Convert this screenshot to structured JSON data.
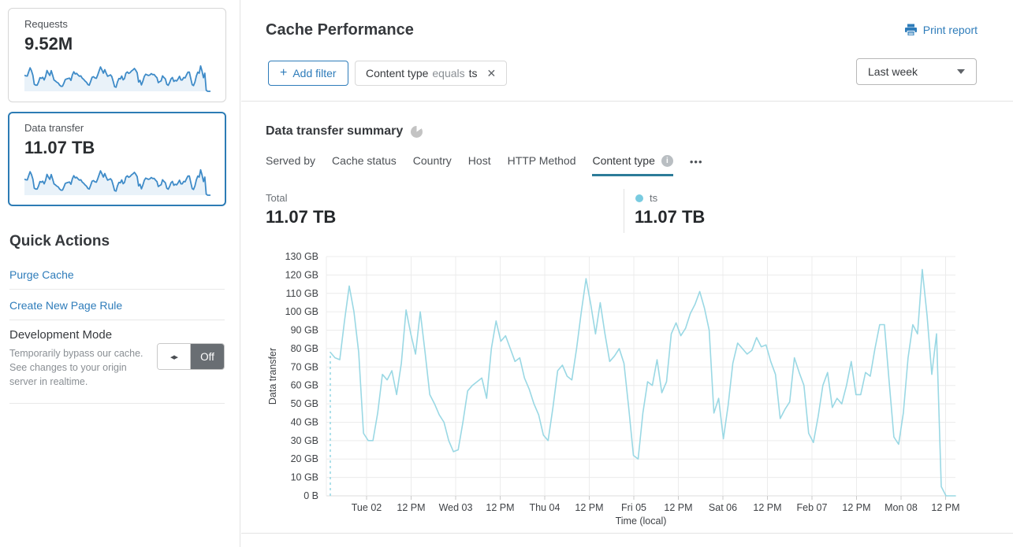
{
  "sidebar": {
    "cards": [
      {
        "label": "Requests",
        "value": "9.52M",
        "selected": false
      },
      {
        "label": "Data transfer",
        "value": "11.07 TB",
        "selected": true
      }
    ],
    "quick_actions": {
      "title": "Quick Actions",
      "links": [
        {
          "label": "Purge Cache"
        },
        {
          "label": "Create New Page Rule"
        }
      ],
      "dev_mode": {
        "label": "Development Mode",
        "description": "Temporarily bypass our cache. See changes to your origin server in realtime.",
        "toggle_state": "Off"
      }
    }
  },
  "header": {
    "title": "Cache Performance",
    "print_report_label": "Print report",
    "add_filter": {
      "plus": "+",
      "label": "Add filter"
    },
    "filter_chip": {
      "field": "Content type",
      "operator": "equals",
      "value": "ts",
      "close": "✕"
    },
    "time_range": "Last week"
  },
  "summary": {
    "title": "Data transfer summary",
    "tabs": [
      {
        "label": "Served by",
        "active": false
      },
      {
        "label": "Cache status",
        "active": false
      },
      {
        "label": "Country",
        "active": false
      },
      {
        "label": "Host",
        "active": false
      },
      {
        "label": "HTTP Method",
        "active": false
      },
      {
        "label": "Content type",
        "active": true
      }
    ],
    "more_label": "•••",
    "total_label": "Total",
    "total_value": "11.07 TB",
    "legend": {
      "name": "ts",
      "value": "11.07 TB",
      "color": "#79cbe0"
    }
  },
  "chart_data": {
    "type": "line",
    "title": "Data transfer summary",
    "xlabel": "Time (local)",
    "ylabel": "Data transfer",
    "unit": "GB",
    "ylim": [
      0,
      130
    ],
    "grid": true,
    "y_tick_labels": [
      "0 B",
      "10 GB",
      "20 GB",
      "30 GB",
      "40 GB",
      "50 GB",
      "60 GB",
      "70 GB",
      "80 GB",
      "90 GB",
      "100 GB",
      "110 GB",
      "120 GB",
      "130 GB"
    ],
    "x_tick_labels": [
      "Tue 02",
      "12 PM",
      "Wed 03",
      "12 PM",
      "Thu 04",
      "12 PM",
      "Fri 05",
      "12 PM",
      "Sat 06",
      "12 PM",
      "Feb 07",
      "12 PM",
      "Mon 08",
      "12 PM"
    ],
    "series": [
      {
        "name": "ts",
        "total": "11.07 TB",
        "color": "#9ad8e4",
        "starts_with_dashed_connector_from_zero": true,
        "values": [
          78,
          75,
          74,
          95,
          114,
          100,
          78,
          34,
          30,
          30,
          45,
          66,
          63,
          68,
          55,
          72,
          101,
          88,
          77,
          100,
          78,
          55,
          50,
          44,
          40,
          30,
          24,
          25,
          40,
          57,
          60,
          62,
          64,
          53,
          80,
          95,
          84,
          87,
          80,
          73,
          75,
          64,
          58,
          50,
          44,
          33,
          30,
          48,
          68,
          71,
          65,
          63,
          80,
          100,
          118,
          104,
          88,
          105,
          88,
          73,
          76,
          80,
          72,
          48,
          22,
          20,
          45,
          62,
          60,
          74,
          56,
          62,
          88,
          94,
          87,
          91,
          99,
          104,
          111,
          102,
          90,
          45,
          53,
          31,
          49,
          72,
          83,
          80,
          77,
          79,
          86,
          81,
          82,
          73,
          66,
          42,
          47,
          51,
          75,
          67,
          60,
          34,
          29,
          43,
          60,
          67,
          48,
          53,
          50,
          60,
          73,
          55,
          55,
          67,
          65,
          80,
          93,
          93,
          62,
          32,
          28,
          45,
          75,
          93,
          88,
          123,
          98,
          66,
          88,
          5,
          0,
          0,
          0
        ]
      }
    ]
  },
  "colors": {
    "accent_blue": "#2e7cba",
    "selected_card_border": "#2d7cb5",
    "tab_underline": "#2c7c99",
    "chart_line": "#9ad8e4",
    "sparkline": "#3e8bc8",
    "sparkline_fill": "#e9f2f9",
    "toggle_off_bg": "#696e73",
    "grid_line": "#ececec"
  }
}
